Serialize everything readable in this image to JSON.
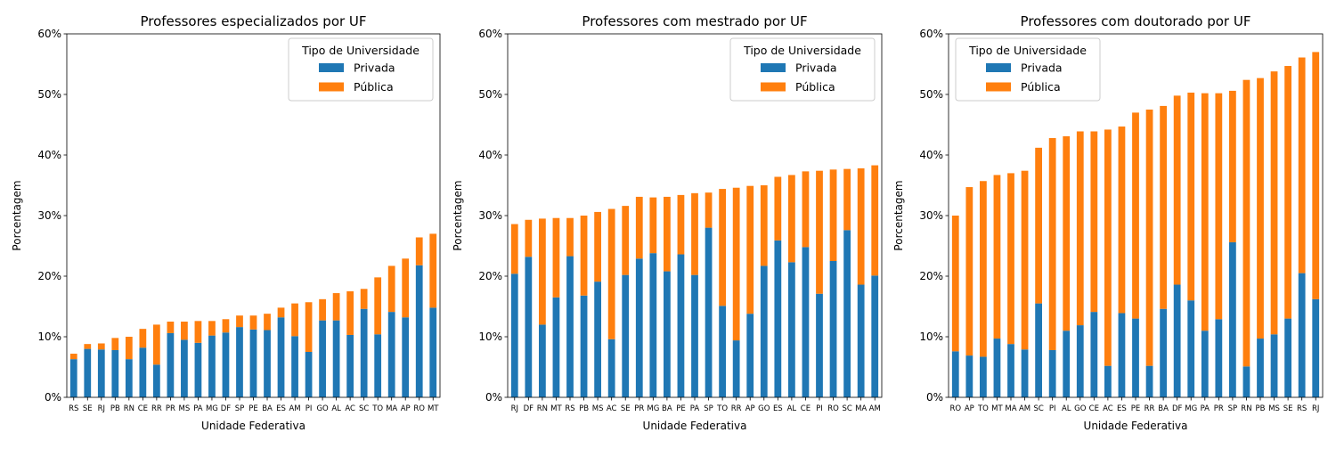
{
  "chart_data": [
    {
      "type": "bar",
      "stacked": true,
      "title": "Professores especializados por UF",
      "xlabel": "Unidade Federativa",
      "ylabel": "Porcentagem",
      "ylim": [
        0,
        60
      ],
      "yticks": [
        "0%",
        "10%",
        "20%",
        "30%",
        "40%",
        "50%",
        "60%"
      ],
      "grid": false,
      "legend": {
        "title": "Tipo de Universidade",
        "placement": "top-right"
      },
      "categories": [
        "RS",
        "SE",
        "RJ",
        "PB",
        "RN",
        "CE",
        "RR",
        "PR",
        "MS",
        "PA",
        "MG",
        "DF",
        "SP",
        "PE",
        "BA",
        "ES",
        "AM",
        "PI",
        "GO",
        "AL",
        "AC",
        "SC",
        "TO",
        "MA",
        "AP",
        "RO",
        "MT"
      ],
      "series": [
        {
          "name": "Privada",
          "color": "#1f77b4",
          "values": [
            6.3,
            8.0,
            7.9,
            7.8,
            6.3,
            8.2,
            5.4,
            10.6,
            9.5,
            9.0,
            10.2,
            10.7,
            11.6,
            11.2,
            11.1,
            13.2,
            10.1,
            7.5,
            12.7,
            12.7,
            10.3,
            14.6,
            10.4,
            14.1,
            13.2,
            21.8,
            14.8
          ]
        },
        {
          "name": "Pública",
          "color": "#ff7f0e",
          "values": [
            0.9,
            0.8,
            1.0,
            2.0,
            3.7,
            3.1,
            6.6,
            1.9,
            3.0,
            3.6,
            2.4,
            2.2,
            1.9,
            2.3,
            2.7,
            1.6,
            5.4,
            8.2,
            3.5,
            4.5,
            7.2,
            3.3,
            9.4,
            7.6,
            9.7,
            4.6,
            12.2
          ]
        }
      ]
    },
    {
      "type": "bar",
      "stacked": true,
      "title": "Professores com mestrado por UF",
      "xlabel": "Unidade Federativa",
      "ylabel": "Porcentagem",
      "ylim": [
        0,
        60
      ],
      "yticks": [
        "0%",
        "10%",
        "20%",
        "30%",
        "40%",
        "50%",
        "60%"
      ],
      "grid": false,
      "legend": {
        "title": "Tipo de Universidade",
        "placement": "top-right"
      },
      "categories": [
        "RJ",
        "DF",
        "RN",
        "MT",
        "RS",
        "PB",
        "MS",
        "AC",
        "SE",
        "PR",
        "MG",
        "BA",
        "PE",
        "PA",
        "SP",
        "TO",
        "RR",
        "AP",
        "GO",
        "ES",
        "AL",
        "CE",
        "PI",
        "RO",
        "SC",
        "MA",
        "AM"
      ],
      "series": [
        {
          "name": "Privada",
          "color": "#1f77b4",
          "values": [
            20.4,
            23.2,
            12.0,
            16.5,
            23.3,
            16.8,
            19.1,
            9.6,
            20.2,
            22.9,
            23.8,
            20.8,
            23.6,
            20.2,
            28.0,
            15.1,
            9.4,
            13.8,
            21.7,
            25.9,
            22.3,
            24.8,
            17.1,
            22.5,
            27.6,
            18.6,
            20.1
          ]
        },
        {
          "name": "Pública",
          "color": "#ff7f0e",
          "values": [
            8.2,
            6.1,
            17.5,
            13.1,
            6.3,
            13.2,
            11.5,
            21.5,
            11.4,
            10.2,
            9.2,
            12.3,
            9.8,
            13.5,
            5.8,
            19.3,
            25.2,
            21.1,
            13.3,
            10.5,
            14.4,
            12.5,
            20.3,
            15.1,
            10.1,
            19.2,
            18.2
          ]
        }
      ]
    },
    {
      "type": "bar",
      "stacked": true,
      "title": "Professores com doutorado por UF",
      "xlabel": "Unidade Federativa",
      "ylabel": "Porcentagem",
      "ylim": [
        0,
        60
      ],
      "yticks": [
        "0%",
        "10%",
        "20%",
        "30%",
        "40%",
        "50%",
        "60%"
      ],
      "grid": false,
      "legend": {
        "title": "Tipo de Universidade",
        "placement": "top-left"
      },
      "categories": [
        "RO",
        "AP",
        "TO",
        "MT",
        "MA",
        "AM",
        "SC",
        "PI",
        "AL",
        "GO",
        "CE",
        "AC",
        "ES",
        "PE",
        "RR",
        "BA",
        "DF",
        "MG",
        "PA",
        "PR",
        "SP",
        "RN",
        "PB",
        "MS",
        "SE",
        "RS",
        "RJ"
      ],
      "series": [
        {
          "name": "Privada",
          "color": "#1f77b4",
          "values": [
            7.6,
            6.9,
            6.7,
            9.7,
            8.8,
            7.9,
            15.5,
            7.8,
            11.0,
            11.9,
            14.1,
            5.2,
            13.9,
            13.0,
            5.2,
            14.6,
            18.6,
            16.0,
            11.0,
            12.9,
            25.6,
            5.1,
            9.7,
            10.4,
            13.0,
            20.5,
            16.2
          ]
        },
        {
          "name": "Pública",
          "color": "#ff7f0e",
          "values": [
            22.4,
            27.8,
            29.0,
            27.0,
            28.2,
            29.5,
            25.7,
            35.0,
            32.1,
            32.0,
            29.8,
            39.0,
            30.8,
            34.0,
            42.3,
            33.5,
            31.2,
            34.3,
            39.2,
            37.3,
            25.0,
            47.3,
            43.0,
            43.4,
            41.7,
            35.6,
            40.8
          ]
        }
      ]
    }
  ]
}
